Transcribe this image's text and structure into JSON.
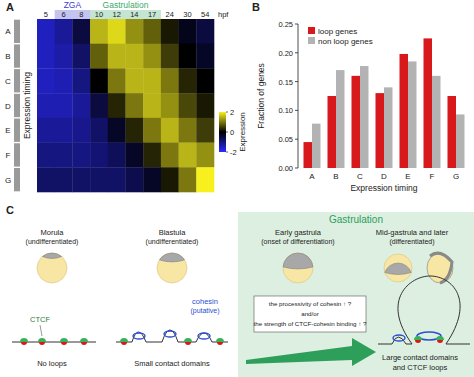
{
  "panels": [
    "A",
    "B",
    "C"
  ],
  "chart_data": [
    {
      "type": "heatmap",
      "categories": [
        "5",
        "6",
        "8",
        "10",
        "12",
        "14",
        "17",
        "24",
        "30",
        "54"
      ],
      "xlabel": "hpf",
      "rows": [
        "A",
        "B",
        "C",
        "D",
        "E",
        "F",
        "G"
      ],
      "ylabel": "Expression timing",
      "cells": [
        [
          -1.5,
          -1.2,
          -0.5,
          1.5,
          1.8,
          1.2,
          0.8,
          0.2,
          -0.2,
          -0.5
        ],
        [
          -1.5,
          -1.3,
          -0.8,
          0.8,
          1.5,
          1.5,
          1.2,
          0.5,
          0,
          -0.3
        ],
        [
          -1.5,
          -1.4,
          -1,
          0,
          1,
          1.5,
          1.5,
          1,
          0.3,
          0
        ],
        [
          -1.4,
          -1.4,
          -1.2,
          -0.5,
          0.3,
          1,
          1.5,
          1.2,
          0.6,
          0.2
        ],
        [
          -1.2,
          -1.2,
          -1.1,
          -0.8,
          -0.3,
          0.3,
          1,
          1.5,
          1,
          0.5
        ],
        [
          -1,
          -1,
          -1,
          -0.9,
          -0.7,
          -0.3,
          0.3,
          1,
          1.5,
          1.2
        ],
        [
          -0.8,
          -0.8,
          -0.8,
          -0.8,
          -0.8,
          -0.6,
          -0.3,
          0.2,
          1,
          2
        ]
      ],
      "bands": [
        {
          "label": "ZGA",
          "from": "6",
          "to": "8",
          "color": "#3b3bd1"
        },
        {
          "label": "Gastrulation",
          "from": "10",
          "to": "17",
          "color": "#3aa86b"
        }
      ],
      "colorbar": {
        "label": "Expression",
        "range": [
          -2,
          2
        ],
        "ticks": [
          2,
          0,
          -2
        ],
        "colors": [
          "#2b2bff",
          "#000000",
          "#f7f01e"
        ]
      }
    },
    {
      "type": "bar",
      "categories": [
        "A",
        "B",
        "C",
        "D",
        "E",
        "F",
        "G"
      ],
      "series": [
        {
          "name": "loop genes",
          "color": "#d7191c",
          "values": [
            0.045,
            0.125,
            0.16,
            0.13,
            0.198,
            0.225,
            0.125
          ]
        },
        {
          "name": "non loop genes",
          "color": "#b3b3b3",
          "values": [
            0.077,
            0.17,
            0.177,
            0.14,
            0.185,
            0.16,
            0.093
          ]
        }
      ],
      "xlabel": "Expression timing",
      "ylabel": "Fraction of genes",
      "ylim": [
        0,
        0.25
      ],
      "yticks": [
        {
          "value": 0,
          "label": "0.00"
        },
        0.05,
        {
          "value": 0.1,
          "label": "0.10"
        },
        0.15,
        {
          "value": 0.2,
          "label": "0.20"
        },
        0.25
      ],
      "legend": "top-left"
    }
  ],
  "diagram": {
    "title": "Gastrulation",
    "stages": [
      {
        "name": "Morula",
        "state": "(undifferentiated)",
        "structure": "No loops"
      },
      {
        "name": "Blastula",
        "state": "(undifferentiated)",
        "structure": "Small contact domains"
      },
      {
        "name": "Early gastrula",
        "state": "(onset of differentiation)",
        "structure": "Large contact domains"
      },
      {
        "name": "Mid-gastrula and later",
        "state": "(differentiated)",
        "structure": "and CTCF loops"
      }
    ],
    "ctcf": "CTCF",
    "cohesin": [
      "cohesin",
      "(putative)"
    ],
    "hypothesis": [
      "the processivity of cohesin ↑ ?",
      "and/or",
      "the strength of CTCF-cohesin binding ↑ ?"
    ]
  }
}
